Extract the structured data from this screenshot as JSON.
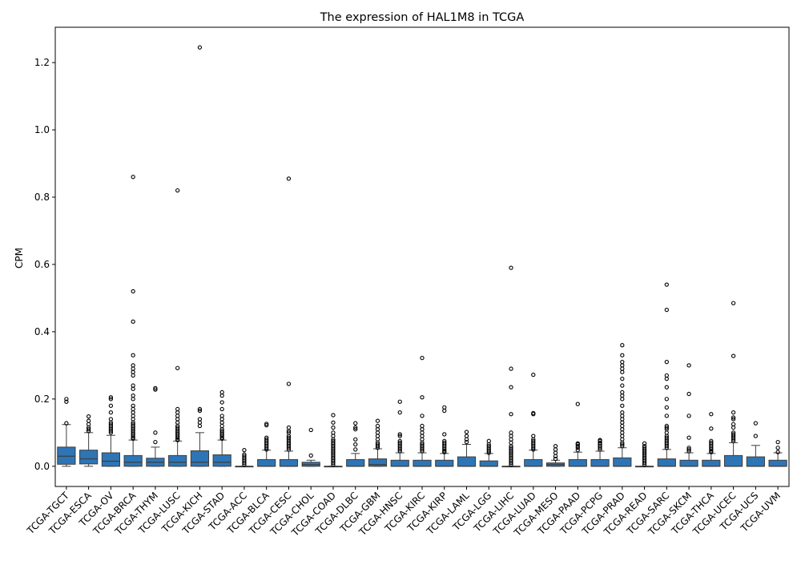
{
  "chart_data": {
    "type": "box",
    "title": "The expression of HAL1M8 in TCGA",
    "xlabel": "",
    "ylabel": "CPM",
    "ylim": [
      -0.06,
      1.305
    ],
    "yticks": [
      0.0,
      0.2,
      0.4,
      0.6,
      0.8,
      1.0,
      1.2
    ],
    "ytick_labels": [
      "0.0",
      "0.2",
      "0.4",
      "0.6",
      "0.8",
      "1.0",
      "1.2"
    ],
    "box_color": "#2e75b6",
    "categories": [
      "TCGA-TGCT",
      "TCGA-ESCA",
      "TCGA-OV",
      "TCGA-BRCA",
      "TCGA-THYM",
      "TCGA-LUSC",
      "TCGA-KICH",
      "TCGA-STAD",
      "TCGA-ACC",
      "TCGA-BLCA",
      "TCGA-CESC",
      "TCGA-CHOL",
      "TCGA-COAD",
      "TCGA-DLBC",
      "TCGA-GBM",
      "TCGA-HNSC",
      "TCGA-KIRC",
      "TCGA-KIRP",
      "TCGA-LAML",
      "TCGA-LGG",
      "TCGA-LIHC",
      "TCGA-LUAD",
      "TCGA-MESO",
      "TCGA-PAAD",
      "TCGA-PCPG",
      "TCGA-PRAD",
      "TCGA-READ",
      "TCGA-SARC",
      "TCGA-SKCM",
      "TCGA-THCA",
      "TCGA-UCEC",
      "TCGA-UCS",
      "TCGA-UVM"
    ],
    "boxes": [
      {
        "min": 0.0,
        "q1": 0.006,
        "median": 0.03,
        "q3": 0.057,
        "max": 0.124,
        "fliers": [
          0.128,
          0.192,
          0.2
        ]
      },
      {
        "min": 0.0,
        "q1": 0.007,
        "median": 0.022,
        "q3": 0.048,
        "max": 0.1,
        "fliers": [
          0.105,
          0.11,
          0.115,
          0.125,
          0.135,
          0.148
        ]
      },
      {
        "min": 0.0,
        "q1": 0.0,
        "median": 0.015,
        "q3": 0.04,
        "max": 0.092,
        "fliers": [
          0.1,
          0.105,
          0.11,
          0.115,
          0.12,
          0.125,
          0.13,
          0.14,
          0.16,
          0.18,
          0.2,
          0.205
        ]
      },
      {
        "min": 0.0,
        "q1": 0.0,
        "median": 0.012,
        "q3": 0.032,
        "max": 0.078,
        "fliers": [
          0.082,
          0.085,
          0.09,
          0.095,
          0.1,
          0.105,
          0.11,
          0.115,
          0.12,
          0.125,
          0.13,
          0.14,
          0.15,
          0.16,
          0.17,
          0.18,
          0.2,
          0.21,
          0.23,
          0.24,
          0.27,
          0.28,
          0.29,
          0.3,
          0.33,
          0.43,
          0.52,
          0.86
        ]
      },
      {
        "min": 0.0,
        "q1": 0.0,
        "median": 0.012,
        "q3": 0.024,
        "max": 0.057,
        "fliers": [
          0.072,
          0.1,
          0.228,
          0.232
        ]
      },
      {
        "min": 0.0,
        "q1": 0.0,
        "median": 0.012,
        "q3": 0.032,
        "max": 0.075,
        "fliers": [
          0.078,
          0.08,
          0.085,
          0.09,
          0.095,
          0.1,
          0.105,
          0.11,
          0.115,
          0.12,
          0.13,
          0.14,
          0.15,
          0.16,
          0.17,
          0.292,
          0.82
        ]
      },
      {
        "min": 0.0,
        "q1": 0.0,
        "median": 0.012,
        "q3": 0.046,
        "max": 0.1,
        "fliers": [
          0.12,
          0.13,
          0.14,
          0.165,
          0.17,
          1.245
        ]
      },
      {
        "min": 0.0,
        "q1": 0.0,
        "median": 0.012,
        "q3": 0.034,
        "max": 0.078,
        "fliers": [
          0.082,
          0.085,
          0.09,
          0.095,
          0.1,
          0.105,
          0.11,
          0.12,
          0.13,
          0.14,
          0.15,
          0.17,
          0.19,
          0.21,
          0.22
        ]
      },
      {
        "min": 0.0,
        "q1": 0.0,
        "median": 0.0,
        "q3": 0.0,
        "max": 0.0,
        "fliers": [
          0.005,
          0.01,
          0.015,
          0.02,
          0.025,
          0.03,
          0.035,
          0.048
        ]
      },
      {
        "min": 0.0,
        "q1": 0.0,
        "median": 0.0,
        "q3": 0.02,
        "max": 0.048,
        "fliers": [
          0.05,
          0.055,
          0.06,
          0.065,
          0.07,
          0.075,
          0.08,
          0.085,
          0.122,
          0.126
        ]
      },
      {
        "min": 0.0,
        "q1": 0.0,
        "median": 0.0,
        "q3": 0.02,
        "max": 0.045,
        "fliers": [
          0.05,
          0.055,
          0.06,
          0.065,
          0.07,
          0.075,
          0.08,
          0.085,
          0.09,
          0.1,
          0.105,
          0.115,
          0.245,
          0.855
        ]
      },
      {
        "min": 0.0,
        "q1": 0.0,
        "median": 0.005,
        "q3": 0.012,
        "max": 0.018,
        "fliers": [
          0.032,
          0.108
        ]
      },
      {
        "min": 0.0,
        "q1": 0.0,
        "median": 0.0,
        "q3": 0.0,
        "max": 0.0,
        "fliers": [
          0.005,
          0.01,
          0.015,
          0.02,
          0.025,
          0.03,
          0.035,
          0.04,
          0.045,
          0.05,
          0.055,
          0.06,
          0.065,
          0.07,
          0.075,
          0.08,
          0.09,
          0.1,
          0.115,
          0.13,
          0.152
        ]
      },
      {
        "min": 0.0,
        "q1": 0.0,
        "median": 0.0,
        "q3": 0.02,
        "max": 0.038,
        "fliers": [
          0.05,
          0.065,
          0.08,
          0.11,
          0.115,
          0.128
        ]
      },
      {
        "min": 0.0,
        "q1": 0.0,
        "median": 0.005,
        "q3": 0.022,
        "max": 0.052,
        "fliers": [
          0.055,
          0.06,
          0.065,
          0.07,
          0.08,
          0.09,
          0.1,
          0.11,
          0.12,
          0.135
        ]
      },
      {
        "min": 0.0,
        "q1": 0.0,
        "median": 0.0,
        "q3": 0.018,
        "max": 0.04,
        "fliers": [
          0.045,
          0.05,
          0.055,
          0.06,
          0.065,
          0.07,
          0.075,
          0.09,
          0.095,
          0.16,
          0.192
        ]
      },
      {
        "min": 0.0,
        "q1": 0.0,
        "median": 0.0,
        "q3": 0.018,
        "max": 0.04,
        "fliers": [
          0.045,
          0.05,
          0.055,
          0.06,
          0.065,
          0.07,
          0.08,
          0.09,
          0.1,
          0.11,
          0.12,
          0.15,
          0.205,
          0.322
        ]
      },
      {
        "min": 0.0,
        "q1": 0.0,
        "median": 0.0,
        "q3": 0.018,
        "max": 0.038,
        "fliers": [
          0.042,
          0.045,
          0.05,
          0.055,
          0.06,
          0.065,
          0.07,
          0.075,
          0.095,
          0.165,
          0.175
        ]
      },
      {
        "min": 0.0,
        "q1": 0.0,
        "median": 0.0,
        "q3": 0.028,
        "max": 0.065,
        "fliers": [
          0.072,
          0.08,
          0.09,
          0.102
        ]
      },
      {
        "min": 0.0,
        "q1": 0.0,
        "median": 0.0,
        "q3": 0.016,
        "max": 0.038,
        "fliers": [
          0.04,
          0.045,
          0.05,
          0.055,
          0.06,
          0.065,
          0.075
        ]
      },
      {
        "min": 0.0,
        "q1": 0.0,
        "median": 0.0,
        "q3": 0.0,
        "max": 0.0,
        "fliers": [
          0.005,
          0.01,
          0.015,
          0.02,
          0.025,
          0.03,
          0.035,
          0.04,
          0.045,
          0.05,
          0.055,
          0.06,
          0.07,
          0.08,
          0.09,
          0.1,
          0.155,
          0.235,
          0.29,
          0.59
        ]
      },
      {
        "min": 0.0,
        "q1": 0.0,
        "median": 0.0,
        "q3": 0.02,
        "max": 0.048,
        "fliers": [
          0.05,
          0.055,
          0.06,
          0.065,
          0.07,
          0.075,
          0.08,
          0.09,
          0.155,
          0.158,
          0.272
        ]
      },
      {
        "min": 0.0,
        "q1": 0.0,
        "median": 0.005,
        "q3": 0.01,
        "max": 0.018,
        "fliers": [
          0.022,
          0.03,
          0.04,
          0.05,
          0.06
        ]
      },
      {
        "min": 0.0,
        "q1": 0.0,
        "median": 0.0,
        "q3": 0.02,
        "max": 0.042,
        "fliers": [
          0.048,
          0.055,
          0.06,
          0.065,
          0.068,
          0.185
        ]
      },
      {
        "min": 0.0,
        "q1": 0.0,
        "median": 0.0,
        "q3": 0.02,
        "max": 0.045,
        "fliers": [
          0.05,
          0.055,
          0.06,
          0.065,
          0.07,
          0.075,
          0.078
        ]
      },
      {
        "min": 0.0,
        "q1": 0.0,
        "median": 0.0,
        "q3": 0.025,
        "max": 0.055,
        "fliers": [
          0.06,
          0.065,
          0.07,
          0.08,
          0.09,
          0.1,
          0.11,
          0.12,
          0.13,
          0.14,
          0.15,
          0.16,
          0.18,
          0.2,
          0.21,
          0.22,
          0.24,
          0.26,
          0.28,
          0.29,
          0.3,
          0.31,
          0.33,
          0.36
        ]
      },
      {
        "min": 0.0,
        "q1": 0.0,
        "median": 0.0,
        "q3": 0.0,
        "max": 0.0,
        "fliers": [
          0.005,
          0.01,
          0.015,
          0.02,
          0.025,
          0.03,
          0.035,
          0.04,
          0.045,
          0.05,
          0.055,
          0.06,
          0.068
        ]
      },
      {
        "min": 0.0,
        "q1": 0.0,
        "median": 0.0,
        "q3": 0.022,
        "max": 0.05,
        "fliers": [
          0.055,
          0.06,
          0.065,
          0.07,
          0.075,
          0.08,
          0.085,
          0.09,
          0.1,
          0.11,
          0.115,
          0.12,
          0.15,
          0.175,
          0.2,
          0.235,
          0.26,
          0.27,
          0.31,
          0.465,
          0.54
        ]
      },
      {
        "min": 0.0,
        "q1": 0.0,
        "median": 0.0,
        "q3": 0.018,
        "max": 0.04,
        "fliers": [
          0.045,
          0.05,
          0.055,
          0.085,
          0.15,
          0.215,
          0.3
        ]
      },
      {
        "min": 0.0,
        "q1": 0.0,
        "median": 0.0,
        "q3": 0.018,
        "max": 0.038,
        "fliers": [
          0.042,
          0.045,
          0.05,
          0.055,
          0.06,
          0.065,
          0.07,
          0.075,
          0.112,
          0.155
        ]
      },
      {
        "min": 0.0,
        "q1": 0.0,
        "median": 0.0,
        "q3": 0.032,
        "max": 0.07,
        "fliers": [
          0.075,
          0.08,
          0.085,
          0.09,
          0.095,
          0.1,
          0.115,
          0.125,
          0.14,
          0.145,
          0.16,
          0.328,
          0.485
        ]
      },
      {
        "min": 0.0,
        "q1": 0.0,
        "median": 0.0,
        "q3": 0.028,
        "max": 0.062,
        "fliers": [
          0.09,
          0.128
        ]
      },
      {
        "min": 0.0,
        "q1": 0.0,
        "median": 0.0,
        "q3": 0.018,
        "max": 0.04,
        "fliers": [
          0.042,
          0.055,
          0.072
        ]
      }
    ]
  }
}
